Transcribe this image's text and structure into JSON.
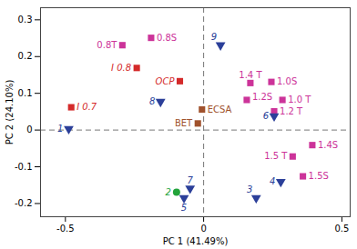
{
  "chart_data": {
    "type": "scatter",
    "xlabel": "PC 1 (41.49%)",
    "ylabel": "PC 2 (24.10%)",
    "xlim": [
      -0.59,
      0.53
    ],
    "ylim": [
      -0.236,
      0.333
    ],
    "xticks": [
      -0.5,
      0,
      0.5
    ],
    "yticks": [
      -0.2,
      -0.1,
      0,
      0.1,
      0.2,
      0.3
    ],
    "grid": false,
    "series": [
      {
        "marker": "square",
        "color": "#cc3399",
        "points": [
          {
            "label": "0.8S",
            "x": -0.19,
            "y": 0.251
          },
          {
            "label": "0.8T",
            "x": -0.294,
            "y": 0.231
          },
          {
            "label": "1.4 T",
            "x": 0.169,
            "y": 0.128
          },
          {
            "label": "1.0S",
            "x": 0.245,
            "y": 0.131
          },
          {
            "label": "1.2S",
            "x": 0.156,
            "y": 0.082
          },
          {
            "label": "1.0 T",
            "x": 0.285,
            "y": 0.082
          },
          {
            "label": "1.2 T",
            "x": 0.255,
            "y": 0.051
          },
          {
            "label": "1.4S",
            "x": 0.393,
            "y": -0.041
          },
          {
            "label": "1.5 T",
            "x": 0.322,
            "y": -0.072
          },
          {
            "label": "1.5S",
            "x": 0.359,
            "y": -0.126
          }
        ]
      },
      {
        "marker": "square",
        "color": "#d42a2a",
        "points": [
          {
            "label": "I 0.8",
            "x": -0.242,
            "y": 0.169
          },
          {
            "label": "OCP",
            "x": -0.086,
            "y": 0.133
          },
          {
            "label": "I 0.7",
            "x": -0.479,
            "y": 0.062
          }
        ]
      },
      {
        "marker": "square",
        "color": "#a0522d",
        "points": [
          {
            "label": "ECSA",
            "x": -0.006,
            "y": 0.056
          },
          {
            "label": "BET",
            "x": -0.021,
            "y": 0.018
          }
        ]
      },
      {
        "marker": "triangle-down",
        "color": "#2b3f99",
        "points": [
          {
            "label": "1",
            "x": -0.488,
            "y": 0.003
          },
          {
            "label": "3",
            "x": 0.19,
            "y": -0.185
          },
          {
            "label": "4",
            "x": 0.279,
            "y": -0.141
          },
          {
            "label": "5",
            "x": -0.071,
            "y": -0.185
          },
          {
            "label": "6",
            "x": 0.255,
            "y": 0.038
          },
          {
            "label": "7",
            "x": -0.049,
            "y": -0.159
          },
          {
            "label": "8",
            "x": -0.156,
            "y": 0.077
          },
          {
            "label": "9",
            "x": 0.061,
            "y": 0.231
          }
        ]
      },
      {
        "marker": "circle",
        "color": "#22a33a",
        "points": [
          {
            "label": "2",
            "x": -0.098,
            "y": -0.169
          }
        ]
      }
    ]
  }
}
